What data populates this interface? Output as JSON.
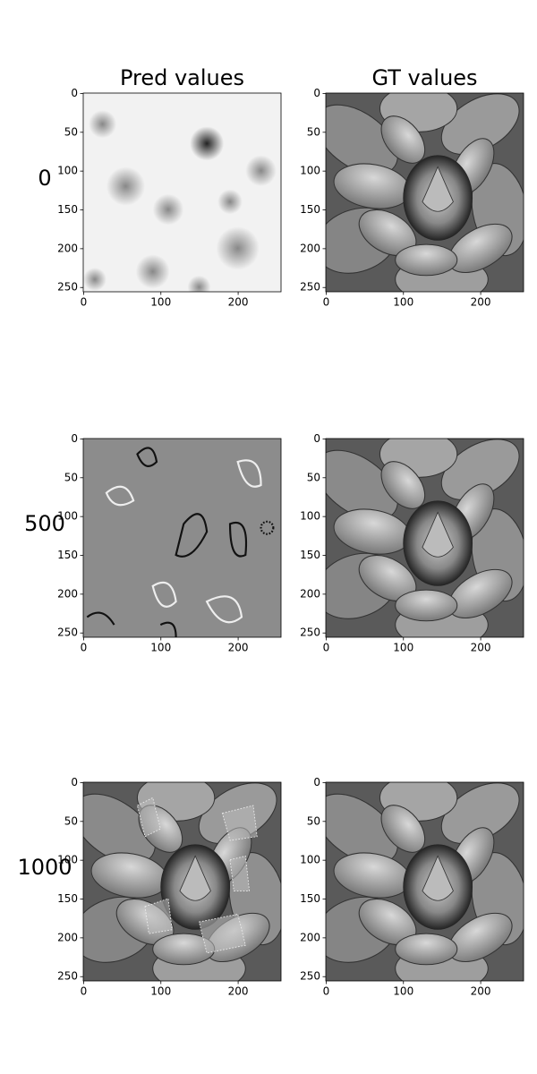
{
  "chart_data": [
    {
      "type": "image",
      "title": "Pred values",
      "ylabel": "0",
      "xlim": [
        -0.5,
        255.5
      ],
      "ylim": [
        255.5,
        -0.5
      ],
      "xticks": [
        0,
        100,
        200
      ],
      "yticks": [
        0,
        50,
        100,
        150,
        200,
        250
      ]
    },
    {
      "type": "image",
      "title": "GT values",
      "xlim": [
        -0.5,
        255.5
      ],
      "ylim": [
        255.5,
        -0.5
      ],
      "xticks": [
        0,
        100,
        200
      ],
      "yticks": [
        0,
        50,
        100,
        150,
        200,
        250
      ]
    },
    {
      "type": "image",
      "ylabel": "500",
      "xlim": [
        -0.5,
        255.5
      ],
      "ylim": [
        255.5,
        -0.5
      ],
      "xticks": [
        0,
        100,
        200
      ],
      "yticks": [
        0,
        50,
        100,
        150,
        200,
        250
      ]
    },
    {
      "type": "image",
      "xlim": [
        -0.5,
        255.5
      ],
      "ylim": [
        255.5,
        -0.5
      ],
      "xticks": [
        0,
        100,
        200
      ],
      "yticks": [
        0,
        50,
        100,
        150,
        200,
        250
      ]
    },
    {
      "type": "image",
      "ylabel": "1000",
      "xlim": [
        -0.5,
        255.5
      ],
      "ylim": [
        255.5,
        -0.5
      ],
      "xticks": [
        0,
        100,
        200
      ],
      "yticks": [
        0,
        50,
        100,
        150,
        200,
        250
      ]
    },
    {
      "type": "image",
      "xlim": [
        -0.5,
        255.5
      ],
      "ylim": [
        255.5,
        -0.5
      ],
      "xticks": [
        0,
        100,
        200
      ],
      "yticks": [
        0,
        50,
        100,
        150,
        200,
        250
      ]
    }
  ]
}
